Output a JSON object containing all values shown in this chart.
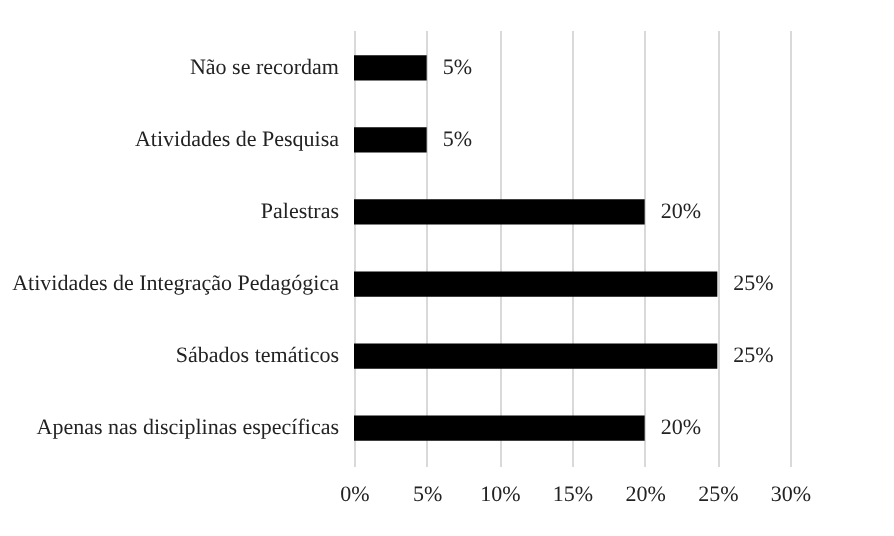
{
  "chart_data": {
    "type": "bar",
    "orientation": "horizontal",
    "categories": [
      "Não se recordam",
      "Atividades de Pesquisa",
      "Palestras",
      "Atividades de Integração Pedagógica",
      "Sábados temáticos",
      "Apenas nas disciplinas específicas"
    ],
    "values": [
      5,
      5,
      20,
      25,
      25,
      20
    ],
    "value_labels": [
      "5%",
      "5%",
      "20%",
      "25%",
      "25%",
      "20%"
    ],
    "color": "#000000",
    "xlim": [
      0,
      30
    ],
    "xticks": [
      {
        "value": 0,
        "label": "0%"
      },
      {
        "value": 5,
        "label": "5%"
      },
      {
        "value": 10,
        "label": "10%"
      },
      {
        "value": 15,
        "label": "15%"
      },
      {
        "value": 20,
        "label": "20%"
      },
      {
        "value": 25,
        "label": "25%"
      },
      {
        "value": 30,
        "label": "30%"
      }
    ],
    "grid": "x"
  }
}
